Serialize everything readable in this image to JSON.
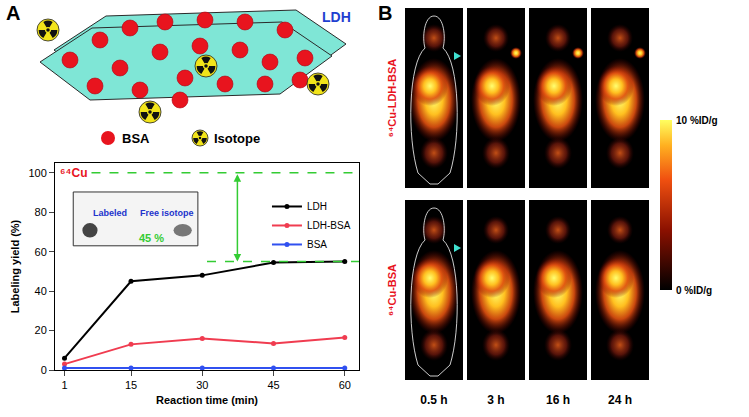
{
  "panel_labels": [
    "A",
    "B"
  ],
  "schematic": {
    "plate_label": "LDH",
    "legend": [
      {
        "name": "BSA",
        "color": "#e8141e"
      },
      {
        "name": "Isotope",
        "color": "#f2e41a"
      }
    ]
  },
  "chart_data": {
    "type": "line",
    "x": [
      1,
      15,
      30,
      45,
      60
    ],
    "xlim": [
      -1,
      63
    ],
    "xticks": [
      1,
      15,
      30,
      45,
      60
    ],
    "ylim": [
      0,
      105
    ],
    "yticks": [
      0,
      20,
      40,
      60,
      80,
      100
    ],
    "x_label": "Reaction time (min)",
    "y_label": "Labeling yield (%)",
    "grid": false,
    "legend": "upper right",
    "marker": "circle",
    "series": [
      {
        "name": "LDH",
        "color": "#000000",
        "values": [
          6,
          45,
          48,
          54.5,
          55
        ]
      },
      {
        "name": "LDH-BSA",
        "color": "#f03c50",
        "values": [
          3,
          13,
          16,
          13.5,
          16.5
        ]
      },
      {
        "name": "BSA",
        "color": "#3050f0",
        "values": [
          1,
          1,
          1,
          1,
          1
        ]
      }
    ],
    "annotations": [
      {
        "text": "⁶⁴Cu",
        "color": "#e8141e"
      }
    ],
    "reference_lines": [
      {
        "value": 100,
        "color": "#33cc33",
        "line_style": "dash"
      },
      {
        "value": 55,
        "color": "#33cc33",
        "line_style": "dash"
      }
    ],
    "inset": {
      "labels": [
        "Labeled",
        "Free isotope"
      ],
      "label_color": "#2233cc",
      "value": 45,
      "value_label": "45 %",
      "value_color": "#33cc33"
    }
  },
  "images": {
    "rows": [
      "⁶⁴Cu-LDH-BSA",
      "⁶⁴Cu-BSA"
    ],
    "row_color": "#e8141e",
    "columns": [
      "0.5 h",
      "3 h",
      "16 h",
      "24 h"
    ],
    "colorbar": {
      "ticks": [
        {
          "value": 10,
          "label": "10 %ID/g"
        },
        {
          "value": 0,
          "label": "0 %ID/g"
        }
      ]
    }
  }
}
